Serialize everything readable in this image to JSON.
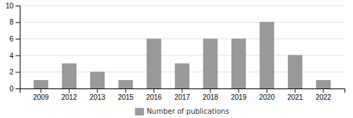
{
  "chart_data": {
    "type": "bar",
    "categories": [
      "2009",
      "2012",
      "2013",
      "2015",
      "2016",
      "2017",
      "2018",
      "2019",
      "2020",
      "2021",
      "2022"
    ],
    "series": [
      {
        "name": "Number of publications",
        "color": "#999999",
        "values": [
          1,
          3,
          2,
          1,
          6,
          3,
          6,
          6,
          8,
          4,
          1
        ]
      }
    ],
    "ylim": [
      0,
      10
    ],
    "yticks": [
      0,
      2,
      4,
      6,
      8,
      10
    ],
    "grid": true,
    "legend": "bottom"
  }
}
